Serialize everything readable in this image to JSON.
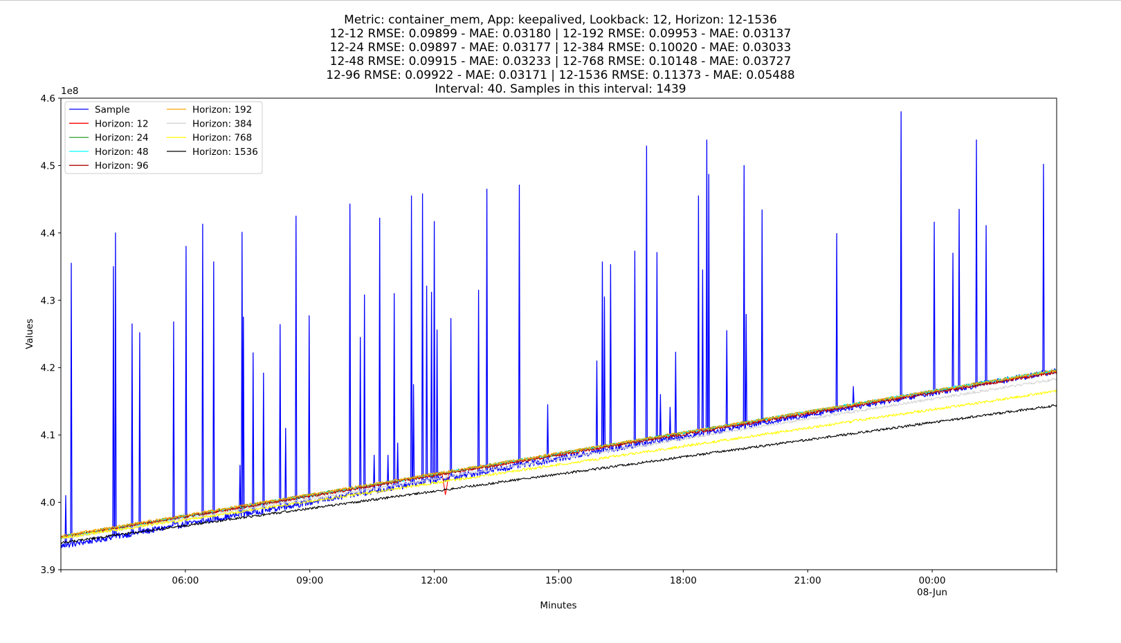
{
  "chart_data": {
    "type": "line",
    "title_lines": [
      "Metric: container_mem, App: keepalived, Lookback: 12, Horizon: 12-1536",
      "12-12 RMSE: 0.09899 - MAE: 0.03180 | 12-192 RMSE: 0.09953 - MAE: 0.03137",
      "12-24 RMSE: 0.09897 - MAE: 0.03177 | 12-384 RMSE: 0.10020 - MAE: 0.03033",
      "12-48 RMSE: 0.09915 - MAE: 0.03233 | 12-768 RMSE: 0.10148 - MAE: 0.03727",
      "12-96 RMSE: 0.09922 - MAE: 0.03171 | 12-1536 RMSE: 0.11373 - MAE: 0.05488",
      "Interval: 40. Samples in this interval: 1439"
    ],
    "xlabel": "Minutes",
    "ylabel": "Values",
    "y_offset_label": "1e8",
    "y_unit_multiplier": 100000000,
    "ylim": [
      3.9,
      4.6
    ],
    "yticks": [
      "3.9",
      "4.0",
      "4.1",
      "4.2",
      "4.3",
      "4.4",
      "4.5",
      "4.6"
    ],
    "x_is_time": true,
    "x_range_hours": [
      3.0,
      27.0
    ],
    "xticks": [
      {
        "hour": 6,
        "label": "06:00"
      },
      {
        "hour": 9,
        "label": "09:00"
      },
      {
        "hour": 12,
        "label": "12:00"
      },
      {
        "hour": 15,
        "label": "15:00"
      },
      {
        "hour": 18,
        "label": "18:00"
      },
      {
        "hour": 21,
        "label": "21:00"
      },
      {
        "hour": 24,
        "label": "00:00",
        "sublabel": "08-Jun"
      }
    ],
    "grid": false,
    "legend_position": "upper left",
    "series": [
      {
        "name": "Sample",
        "color": "#0000ff",
        "start": 3.935,
        "end": 4.195,
        "noise": 0.0045,
        "spikes": [
          {
            "hour": 3.12,
            "value": 4.01
          },
          {
            "hour": 3.25,
            "value": 4.355
          },
          {
            "hour": 4.27,
            "value": 4.35
          },
          {
            "hour": 4.32,
            "value": 4.4
          },
          {
            "hour": 4.72,
            "value": 4.265
          },
          {
            "hour": 4.9,
            "value": 4.252
          },
          {
            "hour": 5.72,
            "value": 4.268
          },
          {
            "hour": 6.02,
            "value": 4.38
          },
          {
            "hour": 6.42,
            "value": 4.413
          },
          {
            "hour": 6.68,
            "value": 4.357
          },
          {
            "hour": 7.32,
            "value": 4.055
          },
          {
            "hour": 7.36,
            "value": 4.401
          },
          {
            "hour": 7.4,
            "value": 4.275
          },
          {
            "hour": 7.63,
            "value": 4.222
          },
          {
            "hour": 7.88,
            "value": 4.192
          },
          {
            "hour": 8.28,
            "value": 4.264
          },
          {
            "hour": 8.42,
            "value": 4.11
          },
          {
            "hour": 8.67,
            "value": 4.425
          },
          {
            "hour": 8.98,
            "value": 4.277
          },
          {
            "hour": 9.97,
            "value": 4.443
          },
          {
            "hour": 10.22,
            "value": 4.245
          },
          {
            "hour": 10.32,
            "value": 4.308
          },
          {
            "hour": 10.55,
            "value": 4.07
          },
          {
            "hour": 10.68,
            "value": 4.422
          },
          {
            "hour": 10.88,
            "value": 4.07
          },
          {
            "hour": 11.03,
            "value": 4.31
          },
          {
            "hour": 11.12,
            "value": 4.088
          },
          {
            "hour": 11.45,
            "value": 4.455
          },
          {
            "hour": 11.5,
            "value": 4.175
          },
          {
            "hour": 11.72,
            "value": 4.458
          },
          {
            "hour": 11.82,
            "value": 4.321
          },
          {
            "hour": 11.93,
            "value": 4.312
          },
          {
            "hour": 12.0,
            "value": 4.417
          },
          {
            "hour": 12.07,
            "value": 4.256
          },
          {
            "hour": 12.4,
            "value": 4.273
          },
          {
            "hour": 13.07,
            "value": 4.315
          },
          {
            "hour": 13.27,
            "value": 4.465
          },
          {
            "hour": 14.05,
            "value": 4.471
          },
          {
            "hour": 14.73,
            "value": 4.145
          },
          {
            "hour": 15.92,
            "value": 4.21
          },
          {
            "hour": 16.05,
            "value": 4.357
          },
          {
            "hour": 16.1,
            "value": 4.305
          },
          {
            "hour": 16.25,
            "value": 4.353
          },
          {
            "hour": 16.83,
            "value": 4.373
          },
          {
            "hour": 17.12,
            "value": 4.529
          },
          {
            "hour": 17.37,
            "value": 4.371
          },
          {
            "hour": 17.45,
            "value": 4.16
          },
          {
            "hour": 17.68,
            "value": 4.141
          },
          {
            "hour": 17.82,
            "value": 4.223
          },
          {
            "hour": 18.37,
            "value": 4.455
          },
          {
            "hour": 18.47,
            "value": 4.345
          },
          {
            "hour": 18.57,
            "value": 4.538
          },
          {
            "hour": 18.62,
            "value": 4.487
          },
          {
            "hour": 19.05,
            "value": 4.255
          },
          {
            "hour": 19.47,
            "value": 4.5
          },
          {
            "hour": 19.52,
            "value": 4.279
          },
          {
            "hour": 19.9,
            "value": 4.434
          },
          {
            "hour": 21.7,
            "value": 4.399
          },
          {
            "hour": 22.1,
            "value": 4.172
          },
          {
            "hour": 23.25,
            "value": 4.58
          },
          {
            "hour": 24.05,
            "value": 4.416
          },
          {
            "hour": 24.5,
            "value": 4.37
          },
          {
            "hour": 24.65,
            "value": 4.435
          },
          {
            "hour": 25.07,
            "value": 4.538
          },
          {
            "hour": 25.3,
            "value": 4.411
          },
          {
            "hour": 26.68,
            "value": 4.502
          }
        ]
      },
      {
        "name": "Horizon: 12",
        "color": "#ff0000",
        "start": 3.948,
        "end": 4.195,
        "noise": 0.0022,
        "dips": [
          {
            "hour": 12.27,
            "value": 4.01
          }
        ]
      },
      {
        "name": "Horizon: 24",
        "color": "#2ca02c",
        "start": 3.949,
        "end": 4.196,
        "noise": 0.0022
      },
      {
        "name": "Horizon: 48",
        "color": "#00ffff",
        "start": 3.948,
        "end": 4.196,
        "noise": 0.0022
      },
      {
        "name": "Horizon: 96",
        "color": "#b30000",
        "start": 3.948,
        "end": 4.193,
        "noise": 0.0022
      },
      {
        "name": "Horizon: 192",
        "color": "#ffa500",
        "start": 3.95,
        "end": 4.196,
        "noise": 0.002
      },
      {
        "name": "Horizon: 384",
        "color": "#d3d3d3",
        "start": 3.946,
        "end": 4.183,
        "noise": 0.002
      },
      {
        "name": "Horizon: 768",
        "color": "#ffff00",
        "start": 3.947,
        "end": 4.165,
        "noise": 0.002
      },
      {
        "name": "Horizon: 1536",
        "color": "#000000",
        "start": 3.94,
        "end": 4.144,
        "noise": 0.0018
      }
    ]
  }
}
